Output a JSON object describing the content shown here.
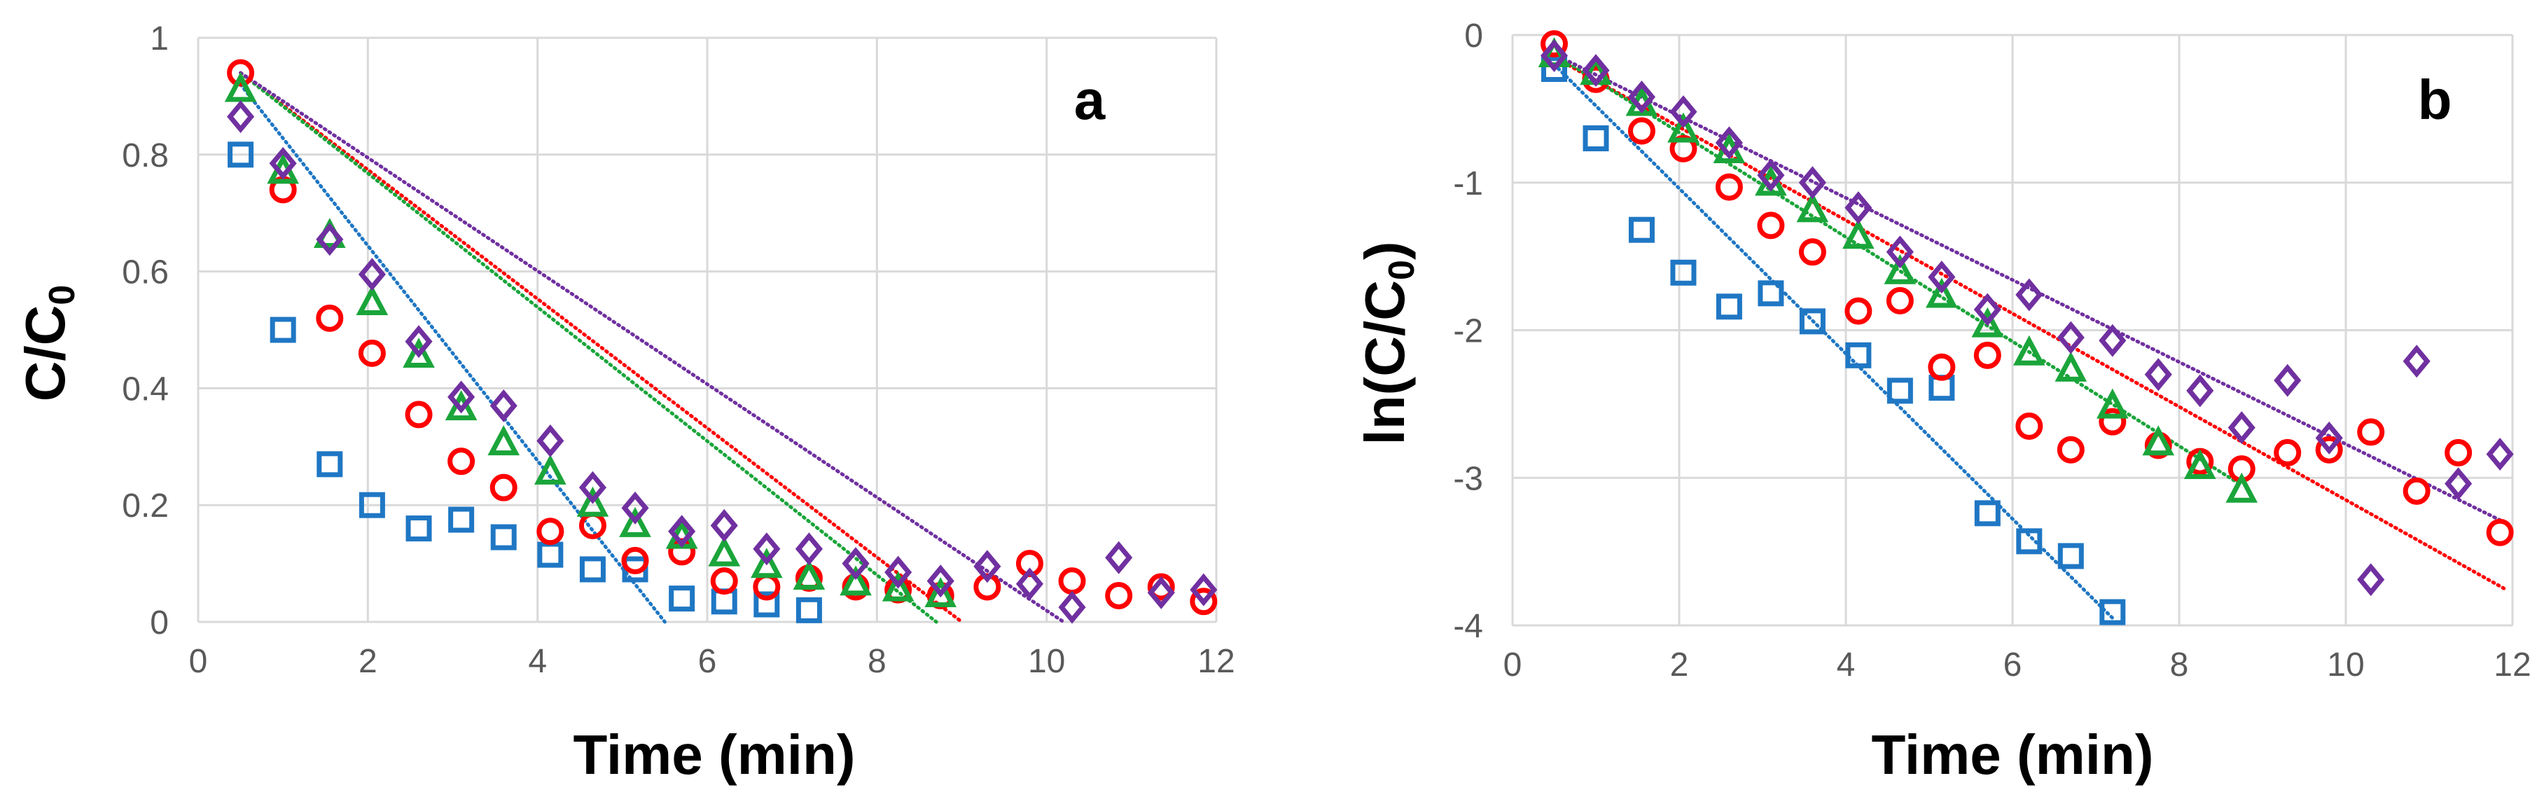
{
  "chart_data": [
    {
      "type": "scatter",
      "panel_label": "a",
      "xlabel": "Time (min)",
      "ylabel": "C/C0",
      "ylabel_main": "C/C",
      "ylabel_sub": "0",
      "xlim": [
        0,
        12
      ],
      "ylim": [
        0,
        1
      ],
      "xticks": [
        "0",
        "2",
        "4",
        "6",
        "8",
        "10",
        "12"
      ],
      "yticks": [
        "0",
        "0.2",
        "0.4",
        "0.6",
        "0.8",
        "1"
      ],
      "grid": true,
      "series": [
        {
          "marker": "square",
          "color": "#1f77c4",
          "x": [
            0.5,
            1.0,
            1.55,
            2.05,
            2.6,
            3.1,
            3.6,
            4.15,
            4.65,
            5.15,
            5.7,
            6.2,
            6.7,
            7.2
          ],
          "y": [
            0.8,
            0.5,
            0.27,
            0.2,
            0.16,
            0.175,
            0.145,
            0.115,
            0.09,
            0.09,
            0.04,
            0.035,
            0.03,
            0.02
          ],
          "trend": {
            "x": [
              0.5,
              5.5
            ],
            "y": [
              0.92,
              0.0
            ]
          }
        },
        {
          "marker": "circle",
          "color": "#ff0000",
          "x": [
            0.5,
            1.0,
            1.55,
            2.05,
            2.6,
            3.1,
            3.6,
            4.15,
            4.65,
            5.15,
            5.7,
            6.2,
            6.7,
            7.2,
            7.75,
            8.25,
            8.75,
            9.3,
            9.8,
            10.3,
            10.85,
            11.35,
            11.85
          ],
          "y": [
            0.94,
            0.74,
            0.52,
            0.46,
            0.355,
            0.275,
            0.23,
            0.155,
            0.165,
            0.105,
            0.12,
            0.07,
            0.06,
            0.075,
            0.06,
            0.055,
            0.045,
            0.06,
            0.1,
            0.07,
            0.045,
            0.06,
            0.035
          ],
          "trend": {
            "x": [
              0.5,
              9.0
            ],
            "y": [
              0.94,
              0.0
            ]
          }
        },
        {
          "marker": "triangle",
          "color": "#1aa53a",
          "x": [
            0.5,
            1.0,
            1.55,
            2.05,
            2.6,
            3.1,
            3.6,
            4.15,
            4.65,
            5.15,
            5.7,
            6.2,
            6.7,
            7.2,
            7.75,
            8.25,
            8.75
          ],
          "y": [
            0.91,
            0.77,
            0.66,
            0.545,
            0.455,
            0.365,
            0.305,
            0.255,
            0.2,
            0.165,
            0.145,
            0.115,
            0.095,
            0.075,
            0.065,
            0.055,
            0.045
          ],
          "trend": {
            "x": [
              0.5,
              8.7
            ],
            "y": [
              0.94,
              0.0
            ]
          }
        },
        {
          "marker": "diamond",
          "color": "#7030a0",
          "x": [
            0.5,
            1.0,
            1.55,
            2.05,
            2.6,
            3.1,
            3.6,
            4.15,
            4.65,
            5.15,
            5.7,
            6.2,
            6.7,
            7.2,
            7.75,
            8.25,
            8.75,
            9.3,
            9.8,
            10.3,
            10.85,
            11.35,
            11.85
          ],
          "y": [
            0.865,
            0.785,
            0.655,
            0.595,
            0.48,
            0.385,
            0.37,
            0.31,
            0.23,
            0.195,
            0.155,
            0.165,
            0.125,
            0.125,
            0.1,
            0.085,
            0.07,
            0.095,
            0.065,
            0.025,
            0.11,
            0.05,
            0.055
          ],
          "trend": {
            "x": [
              0.5,
              10.2
            ],
            "y": [
              0.94,
              0.0
            ]
          }
        }
      ]
    },
    {
      "type": "scatter",
      "panel_label": "b",
      "xlabel": "Time (min)",
      "ylabel": "ln(C/C0)",
      "ylabel_main": "ln(C/C",
      "ylabel_sub": "0",
      "ylabel_close": ")",
      "xlim": [
        0,
        12
      ],
      "ylim": [
        -4,
        0
      ],
      "xticks": [
        "0",
        "2",
        "4",
        "6",
        "8",
        "10",
        "12"
      ],
      "yticks": [
        "-4",
        "-3",
        "-2",
        "-1",
        "0"
      ],
      "grid": true,
      "series": [
        {
          "marker": "square",
          "color": "#1f77c4",
          "x": [
            0.5,
            1.0,
            1.55,
            2.05,
            2.6,
            3.1,
            3.6,
            4.15,
            4.65,
            5.15,
            5.7,
            6.2,
            6.7,
            7.2
          ],
          "y": [
            -0.23,
            -0.7,
            -1.32,
            -1.61,
            -1.84,
            -1.75,
            -1.94,
            -2.17,
            -2.41,
            -2.39,
            -3.24,
            -3.43,
            -3.53,
            -3.91
          ],
          "trend": {
            "x": [
              0.5,
              7.2
            ],
            "y": [
              -0.2,
              -3.95
            ]
          }
        },
        {
          "marker": "circle",
          "color": "#ff0000",
          "x": [
            0.5,
            1.0,
            1.55,
            2.05,
            2.6,
            3.1,
            3.6,
            4.15,
            4.65,
            5.15,
            5.7,
            6.2,
            6.7,
            7.2,
            7.75,
            8.25,
            8.75,
            9.3,
            9.8,
            10.3,
            10.85,
            11.35,
            11.85
          ],
          "y": [
            -0.06,
            -0.3,
            -0.65,
            -0.77,
            -1.03,
            -1.29,
            -1.47,
            -1.87,
            -1.8,
            -2.25,
            -2.17,
            -2.65,
            -2.81,
            -2.62,
            -2.78,
            -2.89,
            -2.94,
            -2.83,
            -2.81,
            -2.69,
            -3.09,
            -2.83,
            -3.37
          ],
          "trend": {
            "x": [
              0.5,
              11.9
            ],
            "y": [
              -0.15,
              -3.75
            ]
          }
        },
        {
          "marker": "triangle",
          "color": "#1aa53a",
          "x": [
            0.5,
            1.0,
            1.55,
            2.05,
            2.6,
            3.1,
            3.6,
            4.15,
            4.65,
            5.15,
            5.7,
            6.2,
            6.7,
            7.2,
            7.75,
            8.25,
            8.75
          ],
          "y": [
            -0.14,
            -0.26,
            -0.47,
            -0.65,
            -0.79,
            -1.01,
            -1.19,
            -1.37,
            -1.61,
            -1.77,
            -1.97,
            -2.16,
            -2.27,
            -2.52,
            -2.77,
            -2.93,
            -3.09
          ],
          "trend": {
            "x": [
              0.5,
              8.75
            ],
            "y": [
              -0.13,
              -3.05
            ]
          }
        },
        {
          "marker": "diamond",
          "color": "#7030a0",
          "x": [
            0.5,
            1.0,
            1.55,
            2.05,
            2.6,
            3.1,
            3.6,
            4.15,
            4.65,
            5.15,
            5.7,
            6.2,
            6.7,
            7.2,
            7.75,
            8.25,
            8.75,
            9.3,
            9.8,
            10.3,
            10.85,
            11.35,
            11.85
          ],
          "y": [
            -0.14,
            -0.24,
            -0.42,
            -0.52,
            -0.73,
            -0.95,
            -1.0,
            -1.17,
            -1.47,
            -1.64,
            -1.86,
            -1.76,
            -2.05,
            -2.07,
            -2.3,
            -2.41,
            -2.66,
            -2.34,
            -2.73,
            -3.69,
            -2.21,
            -3.04,
            -2.84
          ],
          "trend": {
            "x": [
              0.5,
              11.9
            ],
            "y": [
              -0.13,
              -3.3
            ]
          }
        }
      ]
    }
  ]
}
